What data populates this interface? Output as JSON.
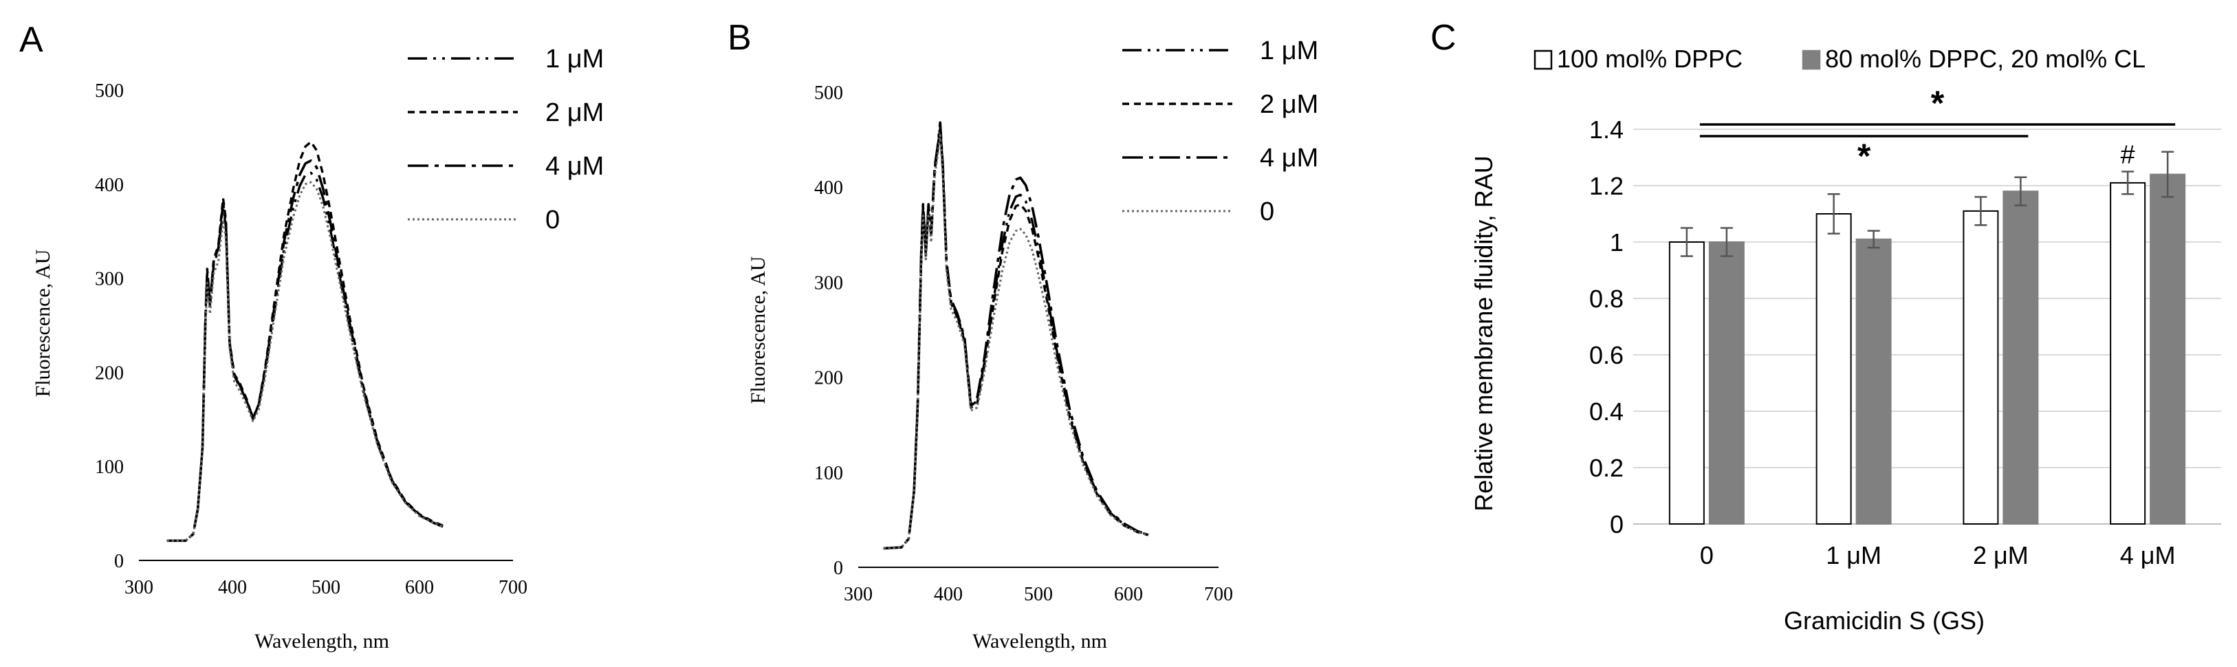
{
  "chart_data": [
    {
      "panel": "A",
      "type": "line",
      "xlabel": "Wavelength,  nm",
      "ylabel": "Fluorescence, AU",
      "xlim": [
        300,
        700
      ],
      "ylim": [
        0,
        500
      ],
      "xticks": [
        300,
        400,
        500,
        600,
        700
      ],
      "yticks": [
        0,
        100,
        200,
        300,
        400,
        500
      ],
      "legend_position": "top-right",
      "series": [
        {
          "name": "1 μM",
          "x": [
            330,
            350,
            358,
            363,
            368,
            371,
            373,
            376,
            380,
            385,
            390,
            393,
            397,
            402,
            408,
            415,
            422,
            428,
            435,
            445,
            455,
            465,
            472,
            478,
            484,
            490,
            497,
            505,
            515,
            525,
            540,
            555,
            570,
            585,
            600,
            615,
            625
          ],
          "y": [
            21,
            21,
            28,
            55,
            120,
            250,
            305,
            270,
            315,
            330,
            375,
            355,
            230,
            195,
            185,
            170,
            152,
            165,
            200,
            265,
            330,
            375,
            398,
            410,
            412,
            405,
            385,
            350,
            300,
            250,
            180,
            125,
            85,
            62,
            48,
            40,
            36
          ]
        },
        {
          "name": "2 μM",
          "x": [
            330,
            350,
            358,
            363,
            368,
            371,
            373,
            376,
            380,
            385,
            390,
            393,
            397,
            402,
            408,
            415,
            422,
            428,
            435,
            445,
            455,
            465,
            472,
            478,
            484,
            490,
            497,
            505,
            515,
            525,
            540,
            555,
            570,
            585,
            600,
            615,
            625
          ],
          "y": [
            21,
            21,
            28,
            55,
            120,
            255,
            310,
            275,
            320,
            335,
            385,
            362,
            232,
            198,
            188,
            172,
            150,
            166,
            205,
            275,
            345,
            395,
            425,
            440,
            445,
            436,
            410,
            370,
            315,
            260,
            185,
            128,
            87,
            63,
            49,
            41,
            37
          ]
        },
        {
          "name": "4 μM",
          "x": [
            330,
            350,
            358,
            363,
            368,
            371,
            373,
            376,
            380,
            385,
            390,
            393,
            397,
            402,
            408,
            415,
            422,
            428,
            435,
            445,
            455,
            465,
            472,
            478,
            484,
            490,
            497,
            505,
            515,
            525,
            540,
            555,
            570,
            585,
            600,
            615,
            625
          ],
          "y": [
            21,
            21,
            28,
            55,
            120,
            252,
            305,
            272,
            318,
            332,
            380,
            358,
            231,
            196,
            186,
            171,
            151,
            165,
            202,
            270,
            338,
            385,
            410,
            422,
            425,
            418,
            395,
            358,
            306,
            254,
            182,
            126,
            86,
            62,
            48,
            40,
            36
          ]
        },
        {
          "name": "0",
          "x": [
            330,
            350,
            358,
            363,
            368,
            371,
            373,
            376,
            380,
            385,
            390,
            393,
            397,
            402,
            408,
            415,
            422,
            428,
            435,
            445,
            455,
            465,
            472,
            478,
            484,
            490,
            497,
            505,
            515,
            525,
            540,
            555,
            570,
            585,
            600,
            615,
            625
          ],
          "y": [
            21,
            21,
            28,
            55,
            118,
            245,
            295,
            262,
            305,
            318,
            362,
            342,
            225,
            190,
            180,
            165,
            148,
            160,
            195,
            260,
            322,
            365,
            388,
            400,
            402,
            395,
            376,
            342,
            294,
            245,
            177,
            123,
            84,
            61,
            47,
            40,
            36
          ]
        }
      ]
    },
    {
      "panel": "B",
      "type": "line",
      "xlabel": "Wavelength,  nm",
      "ylabel": "Fluorescence, AU",
      "xlim": [
        300,
        700
      ],
      "ylim": [
        0,
        500
      ],
      "xticks": [
        300,
        400,
        500,
        600,
        700
      ],
      "yticks": [
        0,
        100,
        200,
        300,
        400,
        500
      ],
      "legend_position": "top-right",
      "series": [
        {
          "name": "1 μM",
          "x": [
            328,
            348,
            356,
            362,
            366,
            370,
            372,
            375,
            378,
            381,
            385,
            388,
            391,
            394,
            398,
            403,
            410,
            418,
            425,
            432,
            440,
            450,
            460,
            468,
            475,
            480,
            486,
            493,
            500,
            510,
            520,
            535,
            550,
            565,
            580,
            595,
            610,
            622
          ],
          "y": [
            20,
            21,
            30,
            80,
            170,
            330,
            380,
            330,
            380,
            350,
            420,
            440,
            465,
            420,
            320,
            280,
            265,
            240,
            170,
            175,
            215,
            280,
            340,
            375,
            390,
            392,
            385,
            365,
            335,
            285,
            230,
            160,
            112,
            78,
            57,
            45,
            38,
            34
          ]
        },
        {
          "name": "2 μM",
          "x": [
            328,
            348,
            356,
            362,
            366,
            370,
            372,
            375,
            378,
            381,
            385,
            388,
            391,
            394,
            398,
            403,
            410,
            418,
            425,
            432,
            440,
            450,
            460,
            468,
            475,
            480,
            486,
            493,
            500,
            510,
            520,
            535,
            550,
            565,
            580,
            595,
            610,
            622
          ],
          "y": [
            20,
            21,
            30,
            80,
            168,
            325,
            375,
            328,
            378,
            348,
            418,
            438,
            462,
            418,
            318,
            278,
            263,
            238,
            168,
            172,
            212,
            275,
            332,
            365,
            380,
            382,
            375,
            356,
            327,
            279,
            226,
            157,
            110,
            77,
            56,
            44,
            37,
            34
          ]
        },
        {
          "name": "4 μM",
          "x": [
            328,
            348,
            356,
            362,
            366,
            370,
            372,
            375,
            378,
            381,
            385,
            388,
            391,
            394,
            398,
            403,
            410,
            418,
            425,
            432,
            440,
            450,
            460,
            468,
            475,
            480,
            486,
            493,
            500,
            510,
            520,
            535,
            550,
            565,
            580,
            595,
            610,
            622
          ],
          "y": [
            20,
            21,
            30,
            80,
            172,
            332,
            382,
            332,
            382,
            352,
            422,
            442,
            468,
            422,
            322,
            282,
            267,
            242,
            172,
            178,
            220,
            290,
            355,
            392,
            408,
            410,
            402,
            380,
            348,
            295,
            238,
            165,
            115,
            80,
            58,
            46,
            38,
            34
          ]
        },
        {
          "name": "0",
          "x": [
            328,
            348,
            356,
            362,
            366,
            370,
            372,
            375,
            378,
            381,
            385,
            388,
            391,
            394,
            398,
            403,
            410,
            418,
            425,
            432,
            440,
            450,
            460,
            468,
            475,
            480,
            486,
            493,
            500,
            510,
            520,
            535,
            550,
            565,
            580,
            595,
            610,
            622
          ],
          "y": [
            20,
            21,
            30,
            78,
            165,
            320,
            370,
            322,
            372,
            342,
            412,
            432,
            455,
            412,
            312,
            272,
            258,
            234,
            165,
            168,
            205,
            262,
            312,
            342,
            354,
            356,
            350,
            334,
            308,
            265,
            216,
            152,
            107,
            75,
            55,
            44,
            37,
            34
          ]
        }
      ]
    },
    {
      "panel": "C",
      "type": "bar",
      "xlabel": "Gramicidin S (GS)",
      "ylabel": "Relative membrane fluidity, RAU",
      "ylim": [
        0,
        1.4
      ],
      "yticks": [
        "0",
        "0.2",
        "0.4",
        "0.6",
        "0.8",
        "1",
        "1.2",
        "1.4"
      ],
      "grid": true,
      "legend_position": "top",
      "categories": [
        "0",
        "1 μM",
        "2 μM",
        "4 μM"
      ],
      "series": [
        {
          "name": "100 mol% DPPC",
          "color": "#ffffff",
          "values": [
            1.0,
            1.1,
            1.11,
            1.21
          ],
          "errors": [
            0.05,
            0.07,
            0.05,
            0.04
          ]
        },
        {
          "name": "80 mol% DPPC, 20 mol% CL",
          "color": "#808080",
          "values": [
            1.0,
            1.01,
            1.18,
            1.24
          ],
          "errors": [
            0.05,
            0.03,
            0.05,
            0.08
          ]
        }
      ],
      "annotations": [
        {
          "text": "*",
          "from_category": "0",
          "to_category": "2 μM"
        },
        {
          "text": "*",
          "from_category": "0",
          "to_category": "4 μM"
        },
        {
          "text": "#",
          "category": "4 μM"
        }
      ]
    }
  ],
  "panel_labels": [
    "A",
    "B",
    "C"
  ]
}
